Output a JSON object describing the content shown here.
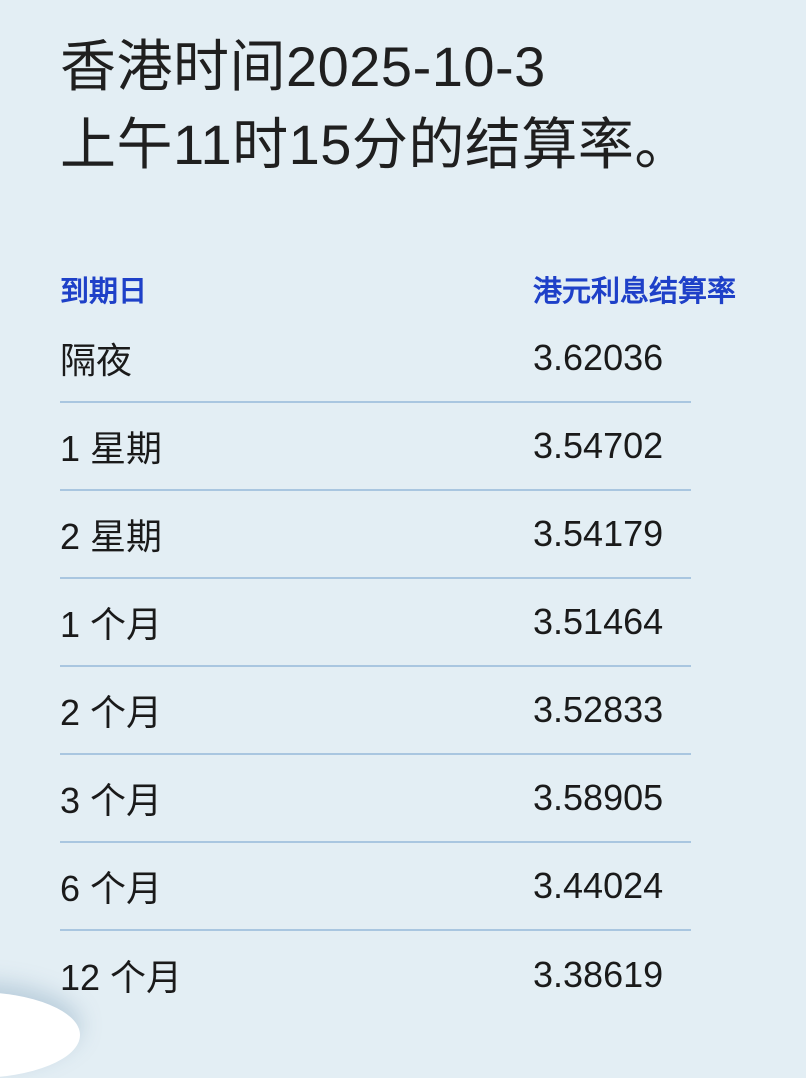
{
  "title": {
    "line1": "香港时间2025-10-3",
    "line2": "上午11时15分的结算率。"
  },
  "table": {
    "headers": {
      "maturity": "到期日",
      "rate": "港元利息结算率"
    },
    "rows": [
      {
        "maturity": "隔夜",
        "rate": "3.62036"
      },
      {
        "maturity": "1 星期",
        "rate": "3.54702"
      },
      {
        "maturity": "2 星期",
        "rate": "3.54179"
      },
      {
        "maturity": "1 个月",
        "rate": "3.51464"
      },
      {
        "maturity": "2 个月",
        "rate": "3.52833"
      },
      {
        "maturity": "3 个月",
        "rate": "3.58905"
      },
      {
        "maturity": "6 个月",
        "rate": "3.44024"
      },
      {
        "maturity": "12 个月",
        "rate": "3.38619"
      }
    ]
  },
  "colors": {
    "background": "#e3eef4",
    "header_blue": "#1e40c8",
    "divider": "#a9c6e0",
    "body_text": "#1a1a1a"
  }
}
